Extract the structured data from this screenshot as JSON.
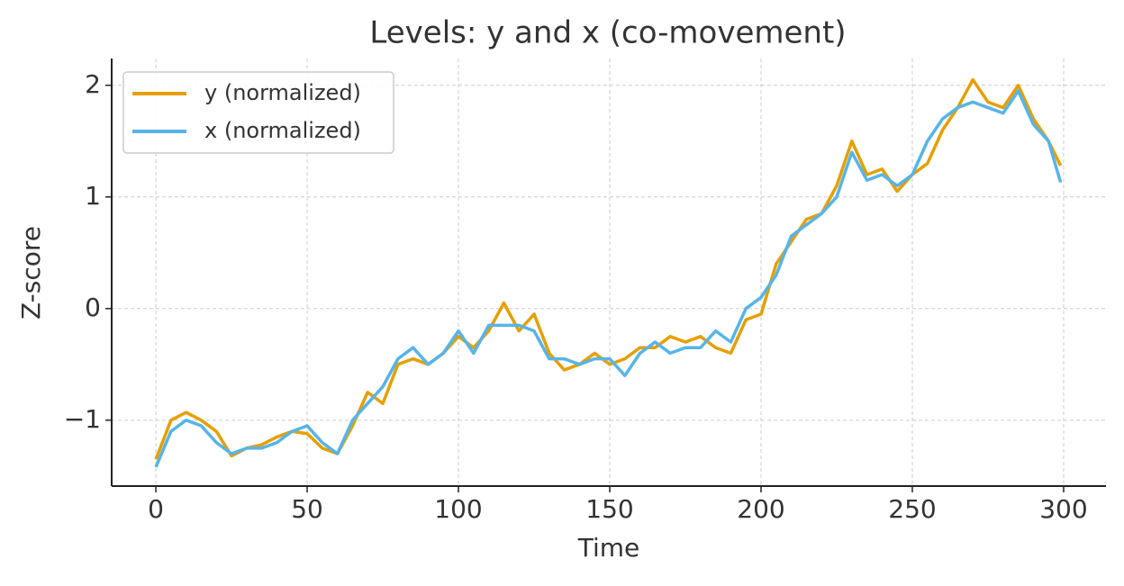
{
  "chart_data": {
    "type": "line",
    "title": "Levels: y and x (co-movement)",
    "x_label": "Time",
    "y_label": "Z-score",
    "x": [
      0,
      5,
      10,
      15,
      20,
      25,
      30,
      35,
      40,
      45,
      50,
      55,
      60,
      65,
      70,
      75,
      80,
      85,
      90,
      95,
      100,
      105,
      110,
      115,
      120,
      125,
      130,
      135,
      140,
      145,
      150,
      155,
      160,
      165,
      170,
      175,
      180,
      185,
      190,
      195,
      200,
      205,
      210,
      215,
      220,
      225,
      230,
      235,
      240,
      245,
      250,
      255,
      260,
      265,
      270,
      275,
      280,
      285,
      290,
      295,
      299
    ],
    "series": [
      {
        "name": "y (normalized)",
        "color": "#E69F00",
        "values": [
          -1.35,
          -1.0,
          -0.93,
          -1.0,
          -1.1,
          -1.32,
          -1.25,
          -1.22,
          -1.15,
          -1.1,
          -1.12,
          -1.25,
          -1.3,
          -1.05,
          -0.75,
          -0.85,
          -0.5,
          -0.45,
          -0.5,
          -0.4,
          -0.25,
          -0.35,
          -0.2,
          0.05,
          -0.2,
          -0.05,
          -0.4,
          -0.55,
          -0.5,
          -0.4,
          -0.5,
          -0.45,
          -0.35,
          -0.35,
          -0.25,
          -0.3,
          -0.25,
          -0.35,
          -0.4,
          -0.1,
          -0.05,
          0.4,
          0.6,
          0.8,
          0.85,
          1.1,
          1.5,
          1.2,
          1.25,
          1.05,
          1.2,
          1.3,
          1.6,
          1.8,
          2.05,
          1.85,
          1.8,
          2.0,
          1.7,
          1.5,
          1.28
        ]
      },
      {
        "name": "x (normalized)",
        "color": "#56B4E9",
        "values": [
          -1.42,
          -1.1,
          -1.0,
          -1.05,
          -1.2,
          -1.3,
          -1.25,
          -1.25,
          -1.2,
          -1.1,
          -1.05,
          -1.2,
          -1.3,
          -1.0,
          -0.85,
          -0.7,
          -0.45,
          -0.35,
          -0.5,
          -0.4,
          -0.2,
          -0.4,
          -0.15,
          -0.15,
          -0.15,
          -0.2,
          -0.45,
          -0.45,
          -0.5,
          -0.45,
          -0.45,
          -0.6,
          -0.4,
          -0.3,
          -0.4,
          -0.35,
          -0.35,
          -0.2,
          -0.3,
          0.0,
          0.1,
          0.3,
          0.65,
          0.75,
          0.85,
          1.0,
          1.4,
          1.15,
          1.2,
          1.1,
          1.2,
          1.5,
          1.7,
          1.8,
          1.85,
          1.8,
          1.75,
          1.95,
          1.65,
          1.5,
          1.13
        ]
      }
    ],
    "xlim": [
      -14.6,
      314
    ],
    "ylim": [
      -1.59,
      2.24
    ],
    "xticks": [
      0,
      50,
      100,
      150,
      200,
      250,
      300
    ],
    "yticks": [
      {
        "value": -1,
        "label": "−1"
      },
      0,
      1,
      2
    ],
    "grid": true,
    "legend": "upper-left"
  }
}
